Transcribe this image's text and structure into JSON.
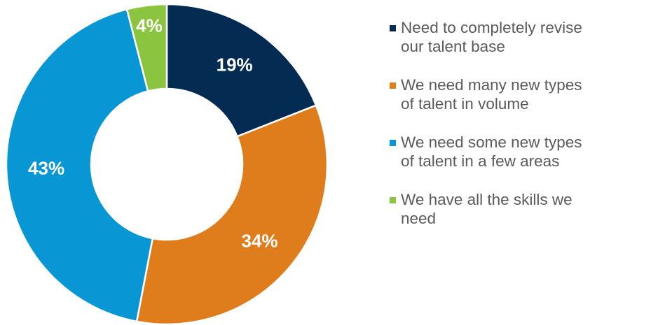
{
  "chart_data": {
    "type": "pie",
    "variant": "donut",
    "title": "",
    "categories": [
      "Need to completely revise our talent base",
      "We need many new types of talent in volume",
      "We need some new types of talent in a few areas",
      "We have all the skills we need"
    ],
    "values": [
      19,
      34,
      43,
      4
    ],
    "data_labels": [
      "19%",
      "34%",
      "43%",
      "4%"
    ],
    "colors": [
      "#042B52",
      "#DF7C1C",
      "#0896D4",
      "#8BC53F"
    ],
    "legend_placement": "right",
    "start_angle": "12 o'clock, clockwise"
  },
  "legend": {
    "items": [
      {
        "line1": "Need to completely revise",
        "line2": "our talent base"
      },
      {
        "line1": "We need many new types",
        "line2": "of talent in volume"
      },
      {
        "line1": "We need some new types",
        "line2": "of talent in a few areas"
      },
      {
        "line1": "We have all the skills we",
        "line2": "need"
      }
    ]
  }
}
